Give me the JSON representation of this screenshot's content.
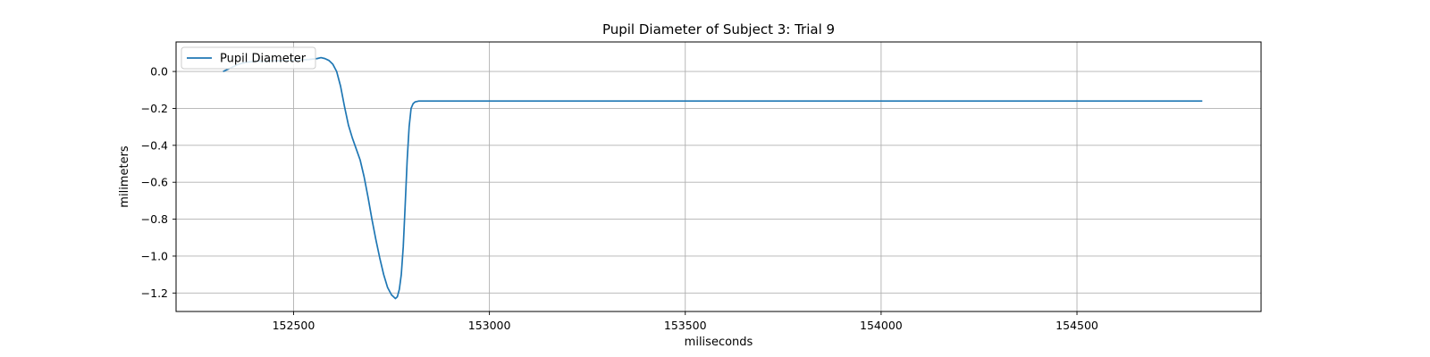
{
  "chart_data": {
    "type": "line",
    "title": "Pupil Diameter of Subject 3: Trial 9",
    "xlabel": "miliseconds",
    "ylabel": "milimeters",
    "xlim": [
      152200,
      154970
    ],
    "ylim": [
      -1.3,
      0.16
    ],
    "xticks": [
      152500,
      153000,
      153500,
      154000,
      154500
    ],
    "yticks": [
      0.0,
      -0.2,
      -0.4,
      -0.6,
      -0.8,
      -1.0,
      -1.2
    ],
    "xtick_labels": [
      "152500",
      "153000",
      "153500",
      "154000",
      "154500"
    ],
    "ytick_labels": [
      "0.0",
      "−0.2",
      "−0.4",
      "−0.6",
      "−0.8",
      "−1.0",
      "−1.2"
    ],
    "grid": true,
    "legend_position": "upper-left",
    "series": [
      {
        "name": "Pupil Diameter",
        "color": "#1f77b4",
        "x": [
          152320,
          152340,
          152360,
          152380,
          152400,
          152450,
          152500,
          152540,
          152560,
          152570,
          152580,
          152590,
          152600,
          152610,
          152620,
          152630,
          152640,
          152650,
          152660,
          152670,
          152680,
          152690,
          152700,
          152710,
          152720,
          152730,
          152740,
          152750,
          152760,
          152765,
          152770,
          152775,
          152780,
          152785,
          152790,
          152795,
          152800,
          152805,
          152810,
          152820,
          152840,
          153000,
          153500,
          154000,
          154500,
          154820
        ],
        "y": [
          0.0,
          0.02,
          0.04,
          0.05,
          0.055,
          0.058,
          0.06,
          0.065,
          0.07,
          0.075,
          0.07,
          0.06,
          0.04,
          0.0,
          -0.08,
          -0.19,
          -0.29,
          -0.36,
          -0.42,
          -0.48,
          -0.57,
          -0.68,
          -0.8,
          -0.91,
          -1.01,
          -1.1,
          -1.17,
          -1.21,
          -1.23,
          -1.22,
          -1.18,
          -1.1,
          -0.95,
          -0.72,
          -0.48,
          -0.3,
          -0.2,
          -0.175,
          -0.165,
          -0.16,
          -0.16,
          -0.16,
          -0.16,
          -0.16,
          -0.16,
          -0.16
        ]
      }
    ]
  }
}
